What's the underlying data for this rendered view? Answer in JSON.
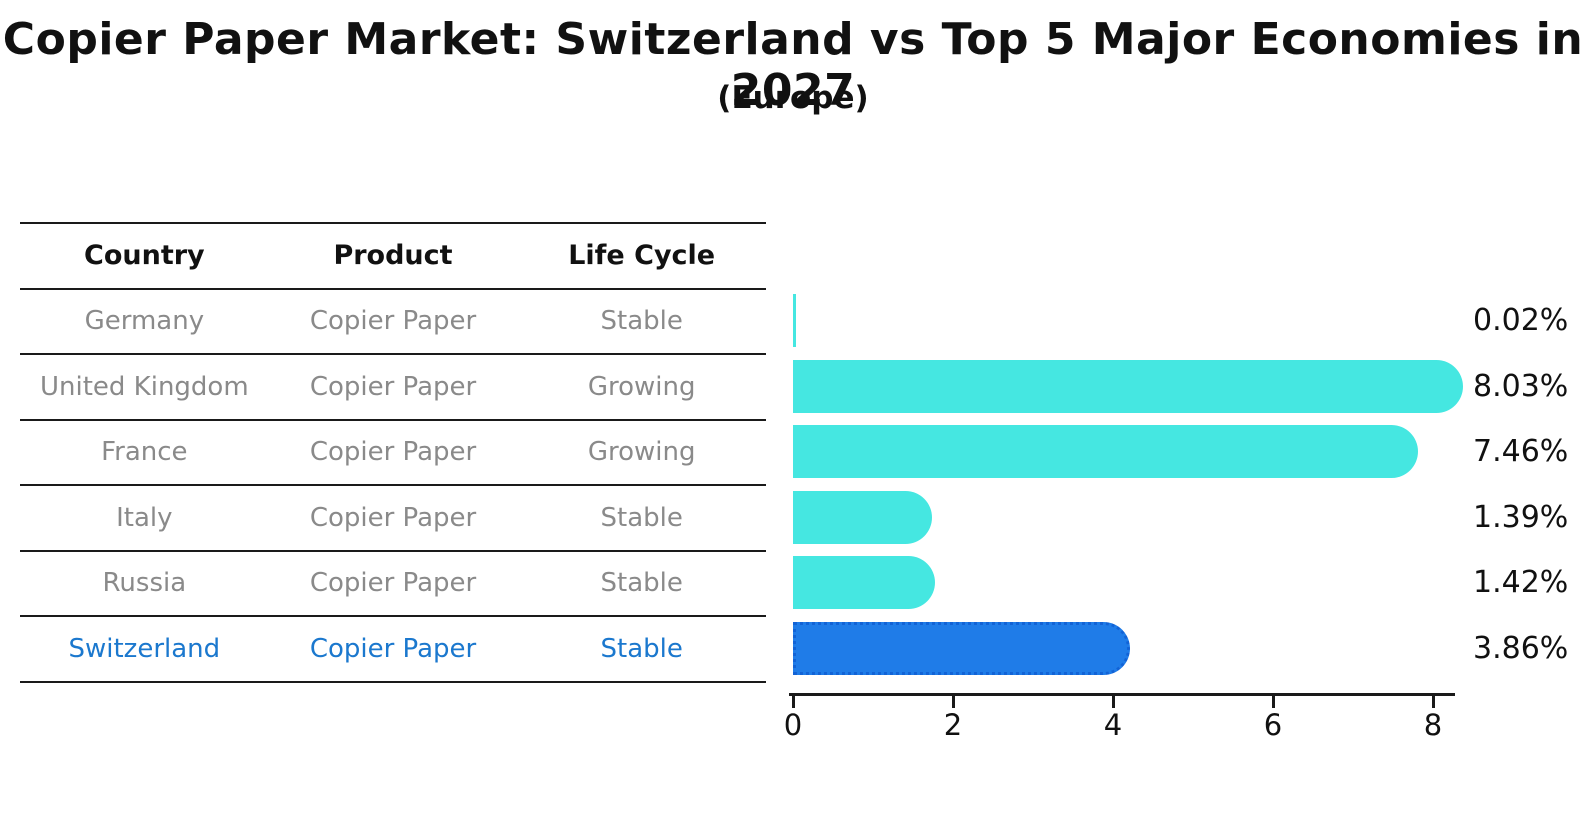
{
  "title": "Copier Paper Market: Switzerland vs Top 5 Major Economies in 2027",
  "subtitle": "(Europe)",
  "table": {
    "headers": {
      "country": "Country",
      "product": "Product",
      "life_cycle": "Life Cycle"
    },
    "rows": [
      {
        "country": "Germany",
        "product": "Copier Paper",
        "life_cycle": "Stable",
        "highlight": false
      },
      {
        "country": "United Kingdom",
        "product": "Copier Paper",
        "life_cycle": "Growing",
        "highlight": false
      },
      {
        "country": "France",
        "product": "Copier Paper",
        "life_cycle": "Growing",
        "highlight": false
      },
      {
        "country": "Italy",
        "product": "Copier Paper",
        "life_cycle": "Stable",
        "highlight": false
      },
      {
        "country": "Russia",
        "product": "Copier Paper",
        "life_cycle": "Stable",
        "highlight": true
      }
    ],
    "last_row": {
      "country": "Switzerland",
      "product": "Copier Paper",
      "life_cycle": "Stable"
    }
  },
  "chart_data": {
    "type": "bar",
    "orientation": "horizontal",
    "title": "Copier Paper Market: Switzerland vs Top 5 Major Economies in 2027 (Europe)",
    "categories": [
      "Germany",
      "United Kingdom",
      "France",
      "Italy",
      "Russia",
      "Switzerland"
    ],
    "values": [
      0.02,
      8.03,
      7.46,
      1.39,
      1.42,
      3.86
    ],
    "labels": [
      "0.02%",
      "8.03%",
      "7.46%",
      "1.39%",
      "1.42%",
      "3.86%"
    ],
    "x_ticks": [
      "0",
      "2",
      "4",
      "6",
      "8"
    ],
    "x_tick_values": [
      0,
      2,
      4,
      6,
      8
    ],
    "xlim": [
      0,
      8.3
    ],
    "grid": false,
    "legend": false,
    "unit": "percent",
    "bar_color": "#45e7e1",
    "highlight_index": 5,
    "highlight_color": "#1f7ce8",
    "highlight_border_color": "#1263d6",
    "highlight_text_color": "#1b78ce"
  }
}
